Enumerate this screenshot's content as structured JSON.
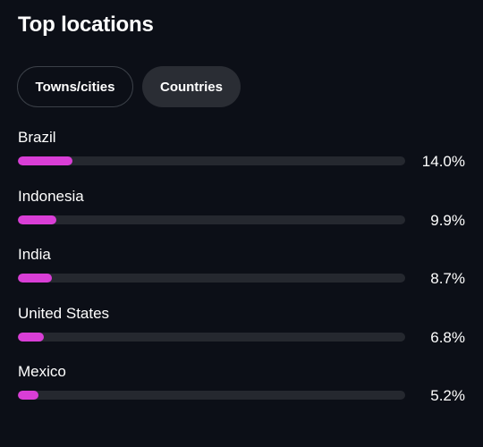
{
  "header": {
    "title": "Top locations"
  },
  "tabs": [
    {
      "label": "Towns/cities",
      "selected": false
    },
    {
      "label": "Countries",
      "selected": true
    }
  ],
  "colors": {
    "background": "#0c0f17",
    "bar_fill": "#d93ed6",
    "bar_track": "#25282f",
    "selected_tab": "#2a2d34"
  },
  "locations": [
    {
      "name": "Brazil",
      "percent_label": "14.0%",
      "percent": 14.0
    },
    {
      "name": "Indonesia",
      "percent_label": "9.9%",
      "percent": 9.9
    },
    {
      "name": "India",
      "percent_label": "8.7%",
      "percent": 8.7
    },
    {
      "name": "United States",
      "percent_label": "6.8%",
      "percent": 6.8
    },
    {
      "name": "Mexico",
      "percent_label": "5.2%",
      "percent": 5.2
    }
  ]
}
